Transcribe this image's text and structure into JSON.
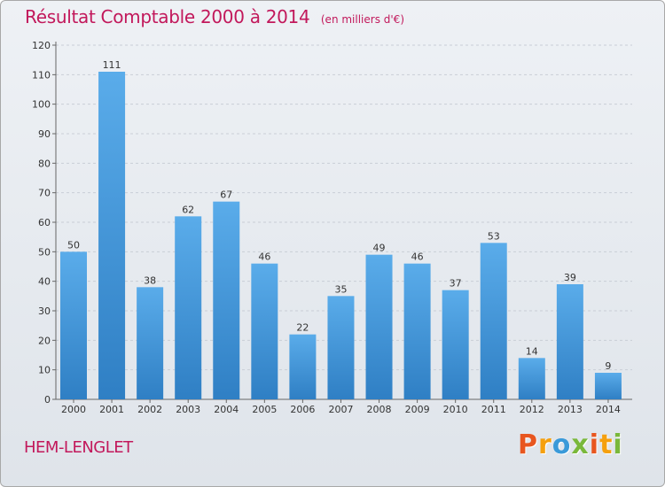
{
  "header": {
    "title": "Résultat Comptable 2000 à 2014",
    "subtitle": "(en milliers d'€)"
  },
  "footer": {
    "place": "HEM-LENGLET",
    "logo_letters": [
      "P",
      "r",
      "o",
      "x",
      "i",
      "t",
      "i"
    ]
  },
  "colors": {
    "title": "#c2185b",
    "bar_top": "#5aacea",
    "bar_bottom": "#2f7fc4",
    "logo": [
      "#e8561f",
      "#f5a00e",
      "#3a9ad9",
      "#7ab83b",
      "#e8561f",
      "#f5a00e",
      "#7ab83b"
    ]
  },
  "chart_data": {
    "type": "bar",
    "title": "Résultat Comptable 2000 à 2014",
    "subtitle": "(en milliers d'€)",
    "categories": [
      "2000",
      "2001",
      "2002",
      "2003",
      "2004",
      "2005",
      "2006",
      "2007",
      "2008",
      "2009",
      "2010",
      "2011",
      "2012",
      "2013",
      "2014"
    ],
    "values": [
      50,
      111,
      38,
      62,
      67,
      46,
      22,
      35,
      49,
      46,
      37,
      53,
      14,
      39,
      9
    ],
    "ylim": [
      0,
      120
    ],
    "yticks": [
      0,
      10,
      20,
      30,
      40,
      50,
      60,
      70,
      80,
      90,
      100,
      110,
      120
    ],
    "grid": true,
    "legend": "none"
  }
}
